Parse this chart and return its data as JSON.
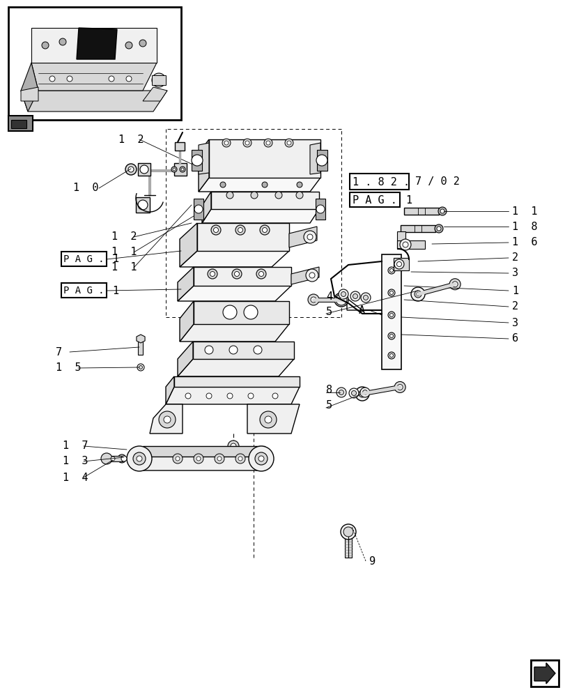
{
  "bg_color": "#ffffff",
  "line_color": "#000000",
  "fig_width": 8.12,
  "fig_height": 10.0,
  "dpi": 100,
  "ref_box_text": "1 . 8 2 .",
  "ref_suffix": "7 / 0 2",
  "pag_text": "P A G .",
  "pag_val": "1",
  "label_A": "A",
  "part_labels_right": [
    [
      740,
      695,
      "1  1"
    ],
    [
      740,
      675,
      "1  8"
    ],
    [
      740,
      655,
      "1  6"
    ],
    [
      740,
      635,
      "2"
    ],
    [
      740,
      612,
      "3"
    ],
    [
      740,
      590,
      "1"
    ],
    [
      740,
      568,
      "2"
    ],
    [
      740,
      545,
      "3"
    ],
    [
      740,
      522,
      "6"
    ]
  ],
  "part_labels_left_upper": [
    [
      105,
      730,
      "1  0"
    ],
    [
      160,
      660,
      "1  2"
    ],
    [
      160,
      638,
      "1  1"
    ],
    [
      160,
      616,
      "1  1"
    ]
  ],
  "part_labels_left_lower": [
    [
      80,
      490,
      "7"
    ],
    [
      80,
      468,
      "1  5"
    ]
  ],
  "part_labels_bottom_left": [
    [
      90,
      280,
      "1  7"
    ],
    [
      90,
      258,
      "1  3"
    ],
    [
      90,
      235,
      "1  4"
    ]
  ],
  "part_labels_bottom_right": [
    [
      474,
      570,
      "4"
    ],
    [
      474,
      540,
      "5"
    ],
    [
      474,
      415,
      "8"
    ],
    [
      474,
      393,
      "5"
    ]
  ],
  "part_label_12": [
    170,
    800,
    "1  2"
  ],
  "part_label_9": [
    530,
    195,
    "9"
  ]
}
